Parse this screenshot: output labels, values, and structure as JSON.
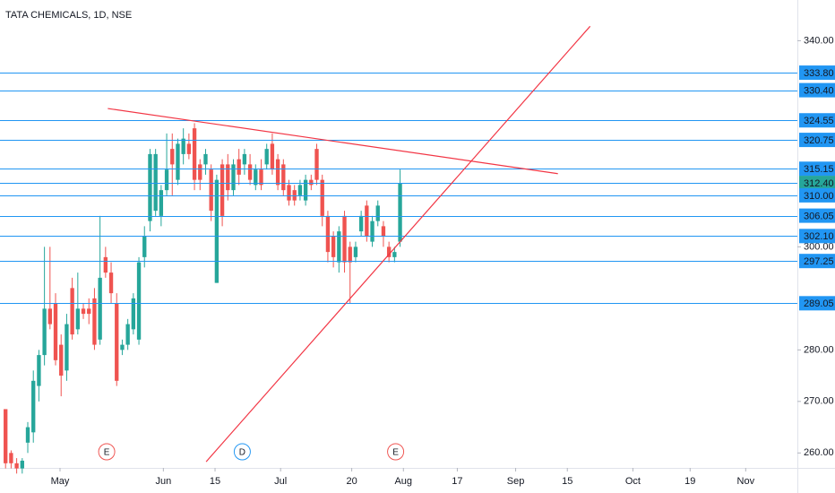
{
  "chart_data": {
    "type": "candlestick",
    "title": "TATA CHEMICALS, 1D, NSE",
    "up_color": "#26a69a",
    "down_color": "#ef5350",
    "ohlc": [
      [
        268.5,
        268.5,
        257,
        258
      ],
      [
        260,
        260.5,
        257,
        258
      ],
      [
        258,
        259,
        256,
        257
      ],
      [
        257,
        259,
        256,
        258.5
      ],
      [
        262,
        266,
        260,
        265
      ],
      [
        264,
        276,
        262,
        274
      ],
      [
        273,
        280,
        270,
        279
      ],
      [
        279,
        300,
        277,
        288
      ],
      [
        288,
        300,
        284,
        285
      ],
      [
        289,
        291,
        277,
        278
      ],
      [
        281,
        283,
        271,
        275
      ],
      [
        276,
        287,
        274,
        285
      ],
      [
        292,
        294,
        282,
        283
      ],
      [
        284,
        295,
        283,
        288
      ],
      [
        288,
        289,
        286,
        287
      ],
      [
        288,
        290,
        285,
        287
      ],
      [
        290,
        292,
        280,
        281
      ],
      [
        282,
        306,
        281,
        294
      ],
      [
        298,
        300,
        294,
        295
      ],
      [
        295,
        297,
        289,
        291
      ],
      [
        289,
        291,
        273,
        274
      ],
      [
        280,
        282,
        279,
        281
      ],
      [
        281,
        286,
        280,
        285
      ],
      [
        284,
        291,
        283,
        290
      ],
      [
        282,
        298,
        281,
        297
      ],
      [
        298,
        304,
        296,
        302
      ],
      [
        305,
        319,
        303,
        318
      ],
      [
        307,
        319,
        306,
        318
      ],
      [
        306,
        312,
        304,
        311
      ],
      [
        311,
        322,
        310,
        315
      ],
      [
        319,
        322,
        310,
        316
      ],
      [
        313,
        321,
        312,
        320
      ],
      [
        318,
        323,
        316,
        321
      ],
      [
        320,
        322,
        317,
        318
      ],
      [
        323,
        324,
        311,
        313
      ],
      [
        316,
        317,
        311,
        313
      ],
      [
        316,
        319,
        314,
        318
      ],
      [
        315,
        316,
        305,
        307
      ],
      [
        293,
        314,
        293,
        313
      ],
      [
        316,
        317,
        304,
        306
      ],
      [
        316,
        318,
        309,
        311
      ],
      [
        311,
        317,
        310,
        316
      ],
      [
        317,
        319,
        312,
        314
      ],
      [
        316,
        319,
        314,
        318
      ],
      [
        316,
        318,
        312,
        313
      ],
      [
        312,
        316,
        311,
        315
      ],
      [
        315,
        317,
        311,
        312
      ],
      [
        316,
        320,
        315,
        319
      ],
      [
        320,
        322,
        314,
        315
      ],
      [
        317,
        318,
        311,
        312
      ],
      [
        316,
        317,
        310,
        311
      ],
      [
        312,
        313,
        308,
        309
      ],
      [
        311,
        312,
        308,
        309
      ],
      [
        310,
        313,
        309,
        312
      ],
      [
        309,
        314,
        308,
        313
      ],
      [
        313,
        314,
        311,
        312
      ],
      [
        319,
        320,
        312,
        313
      ],
      [
        313,
        314,
        304,
        306
      ],
      [
        306,
        307,
        297,
        299
      ],
      [
        302,
        303,
        296,
        298
      ],
      [
        297,
        304,
        295,
        303
      ],
      [
        306,
        307,
        295,
        297
      ],
      [
        300,
        301,
        289,
        297
      ],
      [
        298,
        301,
        297,
        300
      ],
      [
        303,
        307,
        302,
        306
      ],
      [
        308,
        309,
        301,
        302
      ],
      [
        301,
        306,
        300,
        305
      ],
      [
        305,
        309,
        304,
        308
      ],
      [
        304,
        305,
        300,
        302
      ],
      [
        300,
        301,
        297,
        298
      ],
      [
        298,
        300,
        297,
        299
      ],
      [
        301,
        315,
        300,
        312.4
      ]
    ],
    "xlim": [
      -1,
      142.5
    ],
    "ylim": [
      257.1,
      347.9
    ],
    "xticks": [
      {
        "value": 9.8,
        "label": "May"
      },
      {
        "value": 28.4,
        "label": "Jun"
      },
      {
        "value": 37.7,
        "label": "15"
      },
      {
        "value": 49.5,
        "label": "Jul"
      },
      {
        "value": 62.3,
        "label": "20"
      },
      {
        "value": 71.6,
        "label": "Aug"
      },
      {
        "value": 81.3,
        "label": "17"
      },
      {
        "value": 91.8,
        "label": "Sep"
      },
      {
        "value": 101.1,
        "label": "15"
      },
      {
        "value": 112.9,
        "label": "Oct"
      },
      {
        "value": 123.2,
        "label": "19"
      },
      {
        "value": 133.2,
        "label": "Nov"
      }
    ],
    "yticks": [
      {
        "value": 260,
        "label": "260.00"
      },
      {
        "value": 270,
        "label": "270.00"
      },
      {
        "value": 280,
        "label": "280.00"
      },
      {
        "value": 300,
        "label": "300.00"
      },
      {
        "value": 340,
        "label": "340.00"
      }
    ],
    "levels": [
      {
        "value": 333.8,
        "label": "333.80"
      },
      {
        "value": 330.4,
        "label": "330.40"
      },
      {
        "value": 324.55,
        "label": "324.55"
      },
      {
        "value": 320.75,
        "label": "320.75"
      },
      {
        "value": 315.15,
        "label": "315.15"
      },
      {
        "value": 312.4,
        "label": "312.40",
        "label_color": "#26a69a"
      },
      {
        "value": 310,
        "label": "310.00"
      },
      {
        "value": 306.05,
        "label": "306.05"
      },
      {
        "value": 302.1,
        "label": "302.10"
      },
      {
        "value": 297.25,
        "label": "297.25"
      },
      {
        "value": 289.05,
        "label": "289.05"
      }
    ],
    "level_color": "#2196f3",
    "trendlines": [
      {
        "color": "#f23645",
        "points": [
          [
            18.4,
            326.84
          ],
          [
            99.4,
            314.2
          ]
        ]
      },
      {
        "color": "#f23645",
        "points": [
          [
            36.1,
            258.3
          ],
          [
            105.2,
            342.8
          ]
        ]
      }
    ],
    "events": [
      {
        "x": 18.2,
        "label": "E",
        "color": "#ef5350"
      },
      {
        "x": 42.6,
        "label": "D",
        "color": "#2196f3"
      },
      {
        "x": 70.2,
        "label": "E",
        "color": "#ef5350"
      }
    ]
  }
}
